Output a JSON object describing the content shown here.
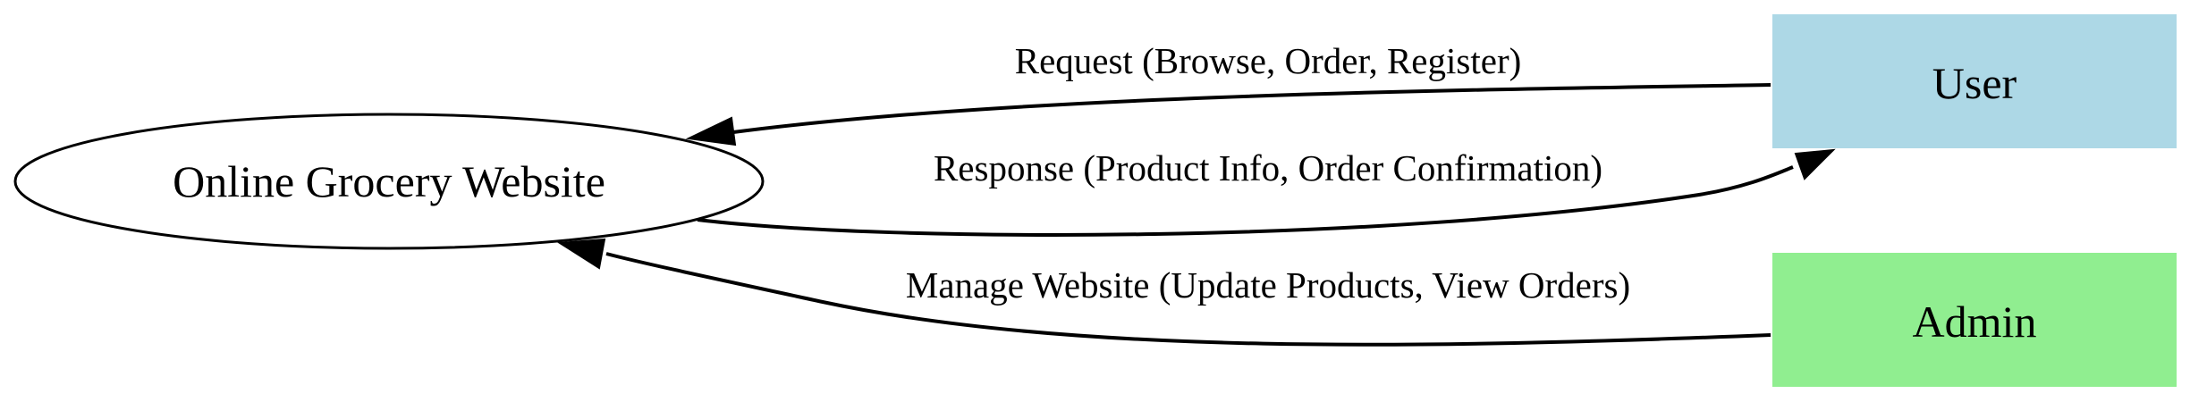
{
  "nodes": {
    "website": {
      "label": "Online Grocery Website",
      "shape": "ellipse",
      "fill": "#ffffff"
    },
    "user": {
      "label": "User",
      "shape": "box",
      "fill": "#add8e6"
    },
    "admin": {
      "label": "Admin",
      "shape": "box",
      "fill": "#90ee90"
    }
  },
  "edges": {
    "request": {
      "from": "User",
      "to": "Online Grocery Website",
      "label": "Request (Browse, Order, Register)"
    },
    "response": {
      "from": "Online Grocery Website",
      "to": "User",
      "label": "Response (Product Info, Order Confirmation)"
    },
    "manage": {
      "from": "Admin",
      "to": "Online Grocery Website",
      "label": "Manage Website (Update Products, View Orders)"
    }
  },
  "colors": {
    "line": "#000000",
    "user_fill": "#add8e6",
    "admin_fill": "#90ee90"
  }
}
